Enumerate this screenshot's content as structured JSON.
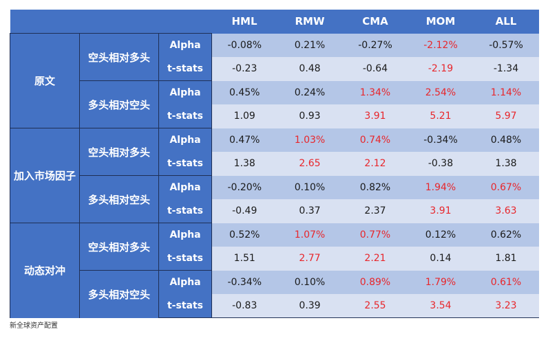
{
  "header": {
    "columns": [
      "HML",
      "RMW",
      "CMA",
      "MOM",
      "ALL"
    ]
  },
  "groups": [
    {
      "label": "原文",
      "subgroups": [
        {
          "label": "空头相对多头",
          "rows": [
            {
              "metric": "Alpha",
              "values": [
                "-0.08%",
                "0.21%",
                "-0.27%",
                "-2.12%",
                "-0.57%"
              ]
            },
            {
              "metric": "t-stats",
              "values": [
                "-0.23",
                "0.48",
                "-0.64",
                "-2.19",
                "-1.34"
              ]
            }
          ]
        },
        {
          "label": "多头相对空头",
          "rows": [
            {
              "metric": "Alpha",
              "values": [
                "0.45%",
                "0.24%",
                "1.34%",
                "2.54%",
                "1.14%"
              ]
            },
            {
              "metric": "t-stats",
              "values": [
                "1.09",
                "0.93",
                "3.91",
                "5.21",
                "5.97"
              ]
            }
          ]
        }
      ]
    },
    {
      "label": "加入市场因子",
      "subgroups": [
        {
          "label": "空头相对多头",
          "rows": [
            {
              "metric": "Alpha",
              "values": [
                "0.47%",
                "1.03%",
                "0.74%",
                "-0.34%",
                "0.48%"
              ]
            },
            {
              "metric": "t-stats",
              "values": [
                "1.38",
                "2.65",
                "2.12",
                "-0.38",
                "1.38"
              ]
            }
          ]
        },
        {
          "label": "多头相对空头",
          "rows": [
            {
              "metric": "Alpha",
              "values": [
                "-0.20%",
                "0.10%",
                "0.82%",
                "1.94%",
                "0.67%"
              ]
            },
            {
              "metric": "t-stats",
              "values": [
                "-0.49",
                "0.37",
                "2.37",
                "3.91",
                "3.63"
              ]
            }
          ]
        }
      ]
    },
    {
      "label": "动态对冲",
      "subgroups": [
        {
          "label": "空头相对多头",
          "rows": [
            {
              "metric": "Alpha",
              "values": [
                "0.52%",
                "1.07%",
                "0.77%",
                "0.12%",
                "0.62%"
              ]
            },
            {
              "metric": "t-stats",
              "values": [
                "1.51",
                "2.77",
                "2.21",
                "0.14",
                "1.81"
              ]
            }
          ]
        },
        {
          "label": "多头相对空头",
          "rows": [
            {
              "metric": "Alpha",
              "values": [
                "-0.34%",
                "0.10%",
                "0.89%",
                "1.79%",
                "0.61%"
              ]
            },
            {
              "metric": "t-stats",
              "values": [
                "-0.83",
                "0.39",
                "2.55",
                "3.54",
                "3.23"
              ]
            }
          ]
        }
      ]
    }
  ],
  "source": "新全球资产配置",
  "colors": {
    "header_blue": "#4472c4",
    "row_dark": "#b4c6e7",
    "row_light": "#d9e1f2",
    "highlight_red": "#e8262b"
  }
}
